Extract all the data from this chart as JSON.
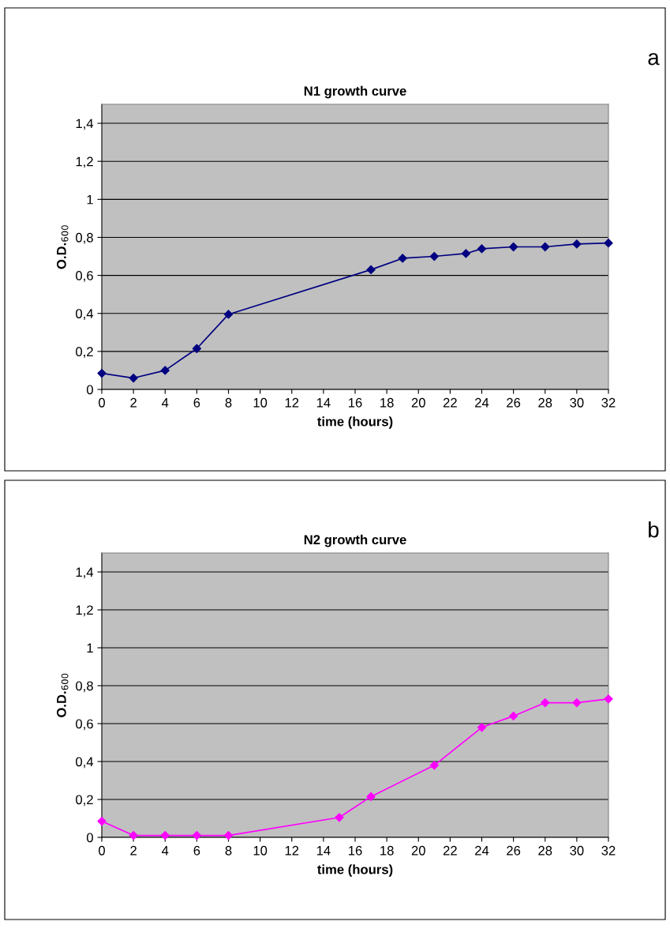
{
  "chart_data": [
    {
      "type": "line",
      "title": "N1 growth curve",
      "xlabel": "time (hours)",
      "ylabel": "O.D.$_{600}$",
      "annotations": [
        "a"
      ],
      "x": [
        0,
        2,
        4,
        6,
        8,
        17,
        19,
        21,
        23,
        24,
        26,
        28,
        30,
        32
      ],
      "series": [
        {
          "color": "#000080",
          "values": [
            0.085,
            0.06,
            0.1,
            0.215,
            0.395,
            0.63,
            0.69,
            0.7,
            0.715,
            0.74,
            0.75,
            0.75,
            0.765,
            0.77
          ]
        }
      ],
      "xlim": [
        0,
        32
      ],
      "xticks": [
        0,
        2,
        4,
        6,
        8,
        10,
        12,
        14,
        16,
        18,
        20,
        22,
        24,
        26,
        28,
        30,
        32
      ],
      "ylim": [
        0,
        1.5
      ],
      "yticks": [
        {
          "value": 0,
          "label": "0"
        },
        {
          "value": 0.2,
          "label": "0,2"
        },
        {
          "value": 0.4,
          "label": "0,4"
        },
        {
          "value": 0.6,
          "label": "0,6"
        },
        {
          "value": 0.8,
          "label": "0,8"
        },
        {
          "value": 1,
          "label": "1"
        },
        {
          "value": 1.2,
          "label": "1,2"
        },
        {
          "value": 1.4,
          "label": "1,4"
        }
      ],
      "grid": "y",
      "legend": false,
      "marker": "diamond",
      "line_style": "solid"
    },
    {
      "type": "line",
      "title": "N2 growth curve",
      "xlabel": "time (hours)",
      "ylabel": "O.D.$_{600}$",
      "annotations": [
        "b"
      ],
      "x": [
        0,
        2,
        4,
        6,
        8,
        15,
        17,
        21,
        24,
        26,
        28,
        30,
        32
      ],
      "series": [
        {
          "color": "#ff00ff",
          "values": [
            0.085,
            0.01,
            0.01,
            0.01,
            0.01,
            0.105,
            0.215,
            0.38,
            0.58,
            0.64,
            0.71,
            0.71,
            0.73
          ]
        }
      ],
      "xlim": [
        0,
        32
      ],
      "xticks": [
        0,
        2,
        4,
        6,
        8,
        10,
        12,
        14,
        16,
        18,
        20,
        22,
        24,
        26,
        28,
        30,
        32
      ],
      "ylim": [
        0,
        1.5
      ],
      "yticks": [
        {
          "value": 0,
          "label": "0"
        },
        {
          "value": 0.2,
          "label": "0,2"
        },
        {
          "value": 0.4,
          "label": "0,4"
        },
        {
          "value": 0.6,
          "label": "0,6"
        },
        {
          "value": 0.8,
          "label": "0,8"
        },
        {
          "value": 1,
          "label": "1"
        },
        {
          "value": 1.2,
          "label": "1,2"
        },
        {
          "value": 1.4,
          "label": "1,4"
        }
      ],
      "grid": "y",
      "legend": false,
      "marker": "diamond",
      "line_style": "solid"
    }
  ]
}
